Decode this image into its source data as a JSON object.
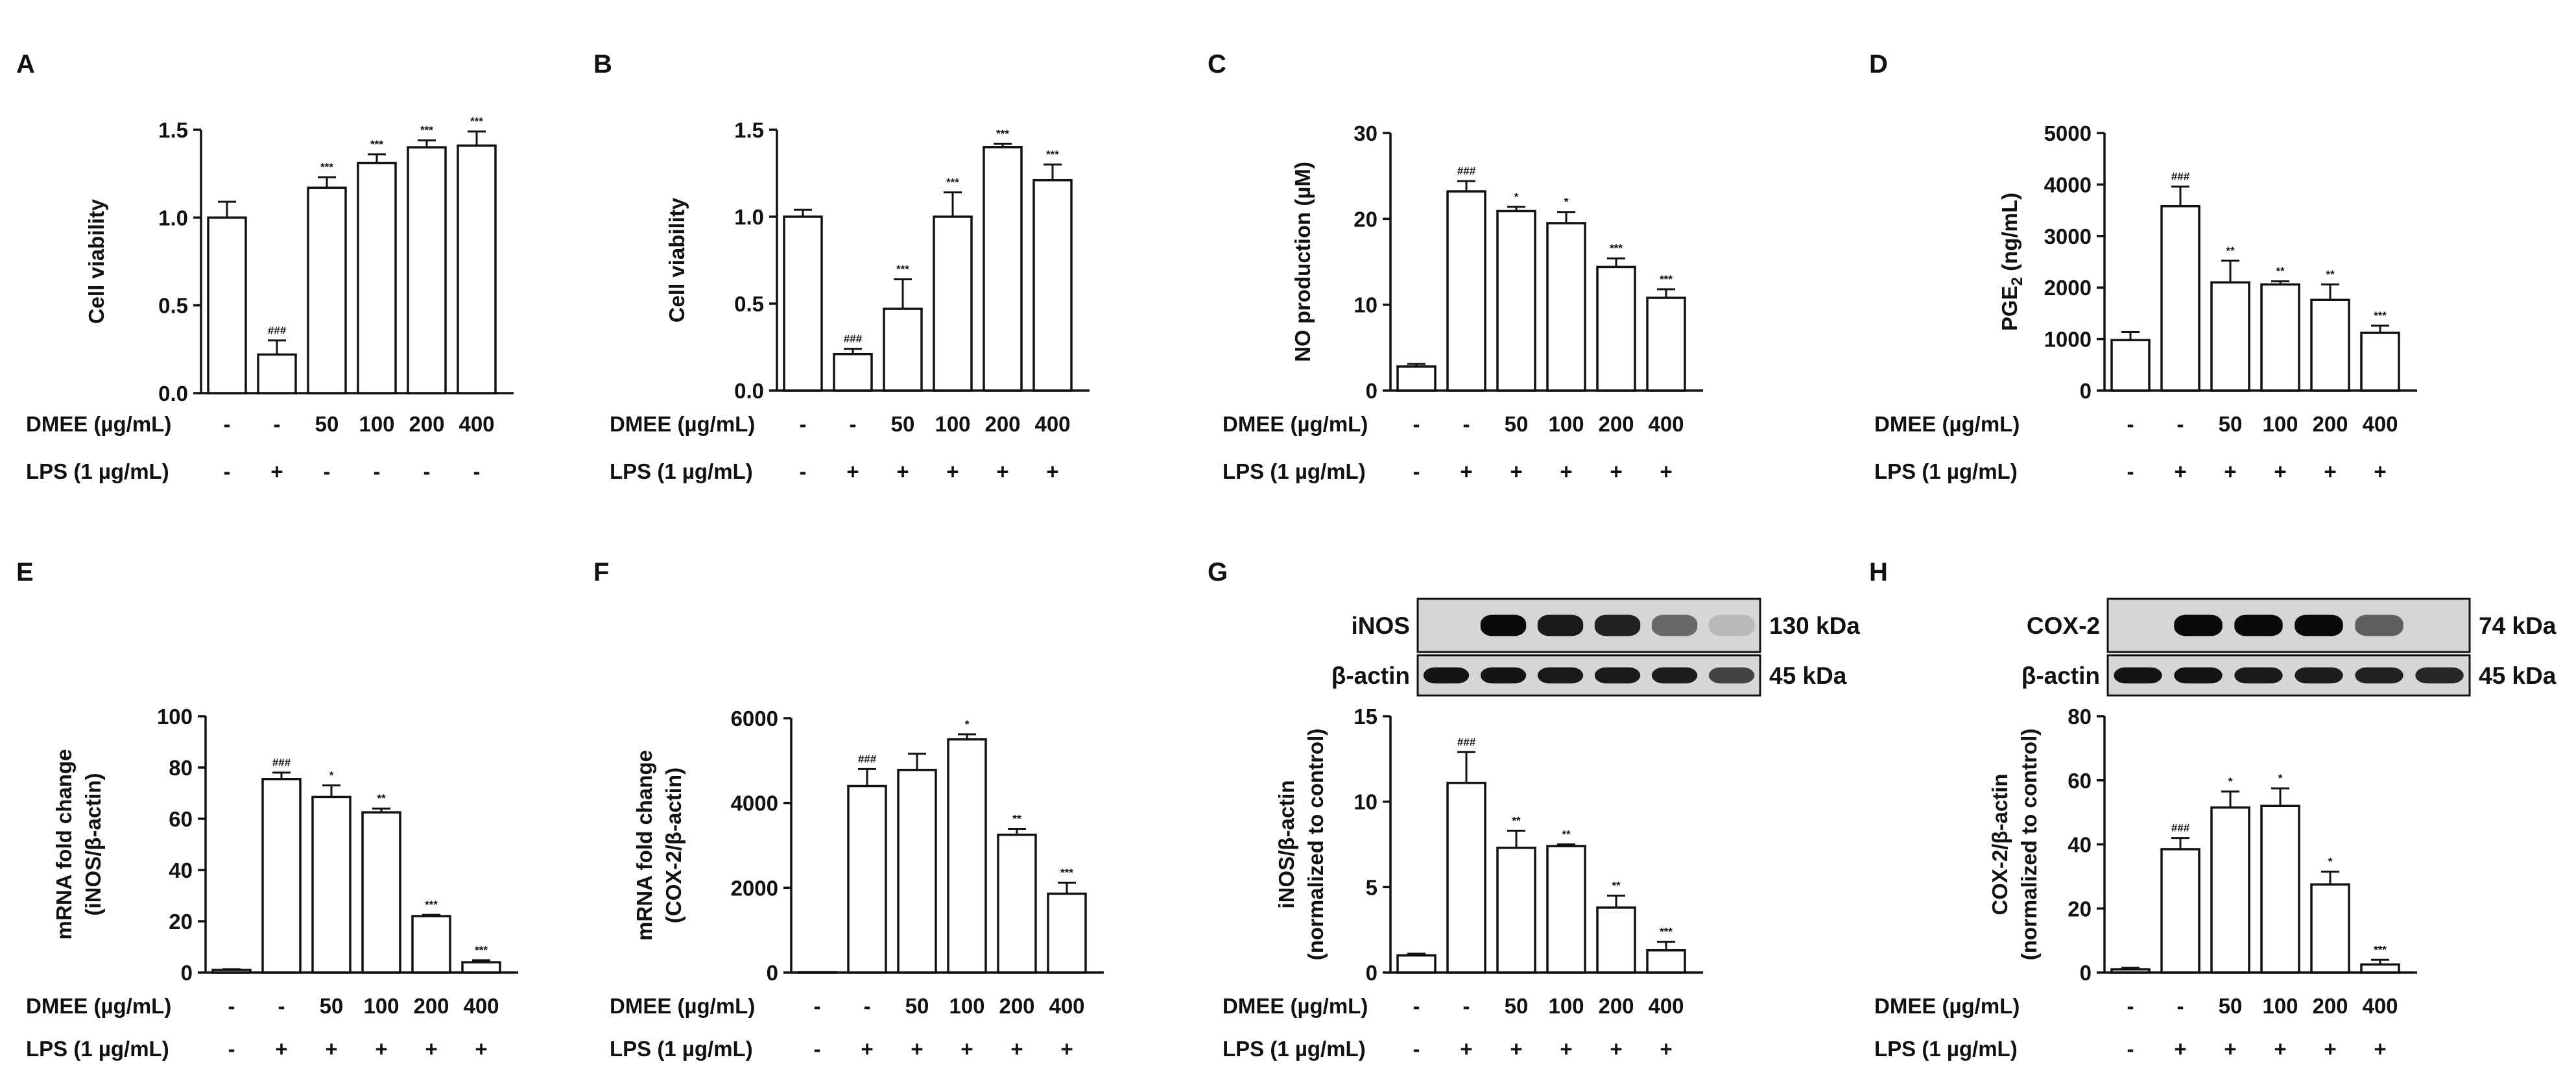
{
  "chart_data": [
    {
      "panel": "A",
      "type": "bar",
      "ylabel": "Cell viability",
      "ylabel_line2": "",
      "ylim": [
        0,
        1.5
      ],
      "yticks": [
        "0.0",
        "0.5",
        "1.0",
        "1.5"
      ],
      "ytick_values": [
        0,
        0.5,
        1.0,
        1.5
      ],
      "row_labels": [
        "DMEE (µg/mL)",
        "LPS (1 µg/mL)"
      ],
      "dmee": [
        "-",
        "-",
        "50",
        "100",
        "200",
        "400"
      ],
      "lps": [
        "-",
        "+",
        "-",
        "-",
        "-",
        "-"
      ],
      "values": [
        1.0,
        0.22,
        1.17,
        1.31,
        1.4,
        1.41
      ],
      "errors": [
        0.09,
        0.08,
        0.06,
        0.05,
        0.04,
        0.08
      ],
      "significance": [
        "",
        "###",
        "***",
        "***",
        "***",
        "***"
      ]
    },
    {
      "panel": "B",
      "type": "bar",
      "ylabel": "Cell viability",
      "ylabel_line2": "",
      "ylim": [
        0,
        1.5
      ],
      "yticks": [
        "0.0",
        "0.5",
        "1.0",
        "1.5"
      ],
      "ytick_values": [
        0,
        0.5,
        1.0,
        1.5
      ],
      "row_labels": [
        "DMEE (µg/mL)",
        "LPS (1 µg/mL)"
      ],
      "dmee": [
        "-",
        "-",
        "50",
        "100",
        "200",
        "400"
      ],
      "lps": [
        "-",
        "+",
        "+",
        "+",
        "+",
        "+"
      ],
      "values": [
        1.0,
        0.21,
        0.47,
        1.0,
        1.4,
        1.21
      ],
      "errors": [
        0.04,
        0.03,
        0.17,
        0.14,
        0.02,
        0.09
      ],
      "significance": [
        "",
        "###",
        "***",
        "***",
        "***",
        "***"
      ]
    },
    {
      "panel": "C",
      "type": "bar",
      "ylabel": "NO production (µM)",
      "ylabel_line2": "",
      "ylim": [
        0,
        30
      ],
      "yticks": [
        "0",
        "10",
        "20",
        "30"
      ],
      "ytick_values": [
        0,
        10,
        20,
        30
      ],
      "row_labels": [
        "DMEE (µg/mL)",
        "LPS (1 µg/mL)"
      ],
      "dmee": [
        "-",
        "-",
        "50",
        "100",
        "200",
        "400"
      ],
      "lps": [
        "-",
        "+",
        "+",
        "+",
        "+",
        "+"
      ],
      "values": [
        2.8,
        23.2,
        20.9,
        19.5,
        14.4,
        10.8
      ],
      "errors": [
        0.3,
        1.2,
        0.5,
        1.3,
        1.0,
        1.0
      ],
      "significance": [
        "",
        "###",
        "*",
        "*",
        "***",
        "***"
      ]
    },
    {
      "panel": "D",
      "type": "bar",
      "ylabel": "PGE",
      "ylabel_sub": "2",
      "ylabel_suffix": " (ng/mL)",
      "ylabel_line2": "",
      "ylim": [
        0,
        5000
      ],
      "yticks": [
        "0",
        "1000",
        "2000",
        "3000",
        "4000",
        "5000"
      ],
      "ytick_values": [
        0,
        1000,
        2000,
        3000,
        4000,
        5000
      ],
      "row_labels": [
        "DMEE (µg/mL)",
        "LPS (1 µg/mL)"
      ],
      "dmee": [
        "-",
        "-",
        "50",
        "100",
        "200",
        "400"
      ],
      "lps": [
        "-",
        "+",
        "+",
        "+",
        "+",
        "+"
      ],
      "values": [
        980,
        3580,
        2100,
        2060,
        1760,
        1120
      ],
      "errors": [
        160,
        380,
        420,
        60,
        300,
        140
      ],
      "significance": [
        "",
        "###",
        "**",
        "**",
        "**",
        "***"
      ]
    },
    {
      "panel": "E",
      "type": "bar",
      "ylabel": "mRNA fold change",
      "ylabel_line2": "(iNOS/β-actin)",
      "ylim": [
        0,
        100
      ],
      "yticks": [
        "0",
        "20",
        "40",
        "60",
        "80",
        "100"
      ],
      "ytick_values": [
        0,
        20,
        40,
        60,
        80,
        100
      ],
      "row_labels": [
        "DMEE (µg/mL)",
        "LPS (1 µg/mL)"
      ],
      "dmee": [
        "-",
        "-",
        "50",
        "100",
        "200",
        "400"
      ],
      "lps": [
        "-",
        "+",
        "+",
        "+",
        "+",
        "+"
      ],
      "values": [
        1,
        75.5,
        68.5,
        62.5,
        22,
        4
      ],
      "errors": [
        0.3,
        2.5,
        4.5,
        1.5,
        0.5,
        0.8
      ],
      "significance": [
        "",
        "###",
        "*",
        "**",
        "***",
        "***"
      ]
    },
    {
      "panel": "F",
      "type": "bar",
      "ylabel": "mRNA fold change",
      "ylabel_line2": "(COX-2/β-actin)",
      "ylim": [
        0,
        6000
      ],
      "yticks": [
        "0",
        "2000",
        "4000",
        "6000"
      ],
      "ytick_values": [
        0,
        2000,
        4000,
        6000
      ],
      "row_labels": [
        "DMEE (µg/mL)",
        "LPS (1 µg/mL)"
      ],
      "dmee": [
        "-",
        "-",
        "50",
        "100",
        "200",
        "400"
      ],
      "lps": [
        "-",
        "+",
        "+",
        "+",
        "+",
        "+"
      ],
      "values": [
        5,
        4400,
        4780,
        5500,
        3250,
        1860
      ],
      "errors": [
        2,
        400,
        380,
        120,
        140,
        260
      ],
      "significance": [
        "",
        "###",
        "",
        "*",
        "**",
        "***"
      ]
    },
    {
      "panel": "G",
      "type": "bar",
      "ylabel": "iNOS/β-actin",
      "ylabel_line2": "(normalized to control)",
      "ylim": [
        0,
        15
      ],
      "yticks": [
        "0",
        "5",
        "10",
        "15"
      ],
      "ytick_values": [
        0,
        5,
        10,
        15
      ],
      "row_labels": [
        "DMEE (µg/mL)",
        "LPS (1 µg/mL)"
      ],
      "dmee": [
        "-",
        "-",
        "50",
        "100",
        "200",
        "400"
      ],
      "lps": [
        "-",
        "+",
        "+",
        "+",
        "+",
        "+"
      ],
      "values": [
        1.0,
        11.1,
        7.3,
        7.4,
        3.8,
        1.3
      ],
      "errors": [
        0.1,
        1.8,
        1.0,
        0.1,
        0.7,
        0.5
      ],
      "significance": [
        "",
        "###",
        "**",
        "**",
        "**",
        "***"
      ],
      "blot": {
        "rows": [
          {
            "label": "iNOS",
            "kda": "130 kDa",
            "intensity": [
              0.0,
              1.0,
              0.92,
              0.88,
              0.5,
              0.08
            ]
          },
          {
            "label": "β-actin",
            "kda": "45 kDa",
            "intensity": [
              0.95,
              0.95,
              0.92,
              0.92,
              0.9,
              0.7
            ]
          }
        ]
      }
    },
    {
      "panel": "H",
      "type": "bar",
      "ylabel": "COX-2/β-actin",
      "ylabel_line2": "(normalized to control)",
      "ylim": [
        0,
        80
      ],
      "yticks": [
        "0",
        "20",
        "40",
        "60",
        "80"
      ],
      "ytick_values": [
        0,
        20,
        40,
        60,
        80
      ],
      "row_labels": [
        "DMEE (µg/mL)",
        "LPS (1 µg/mL)"
      ],
      "dmee": [
        "-",
        "-",
        "50",
        "100",
        "200",
        "400"
      ],
      "lps": [
        "-",
        "+",
        "+",
        "+",
        "+",
        "+"
      ],
      "values": [
        1,
        38.5,
        51.5,
        52,
        27.5,
        2.5
      ],
      "errors": [
        0.5,
        3.5,
        5.0,
        5.5,
        4.0,
        1.5
      ],
      "significance": [
        "",
        "###",
        "*",
        "*",
        "*",
        "***"
      ],
      "blot": {
        "rows": [
          {
            "label": "COX-2",
            "kda": "74 kDa",
            "intensity": [
              0.0,
              1.0,
              1.0,
              1.0,
              0.55,
              0.0
            ]
          },
          {
            "label": "β-actin",
            "kda": "45 kDa",
            "intensity": [
              0.95,
              0.95,
              0.92,
              0.9,
              0.88,
              0.85
            ]
          }
        ]
      }
    }
  ]
}
